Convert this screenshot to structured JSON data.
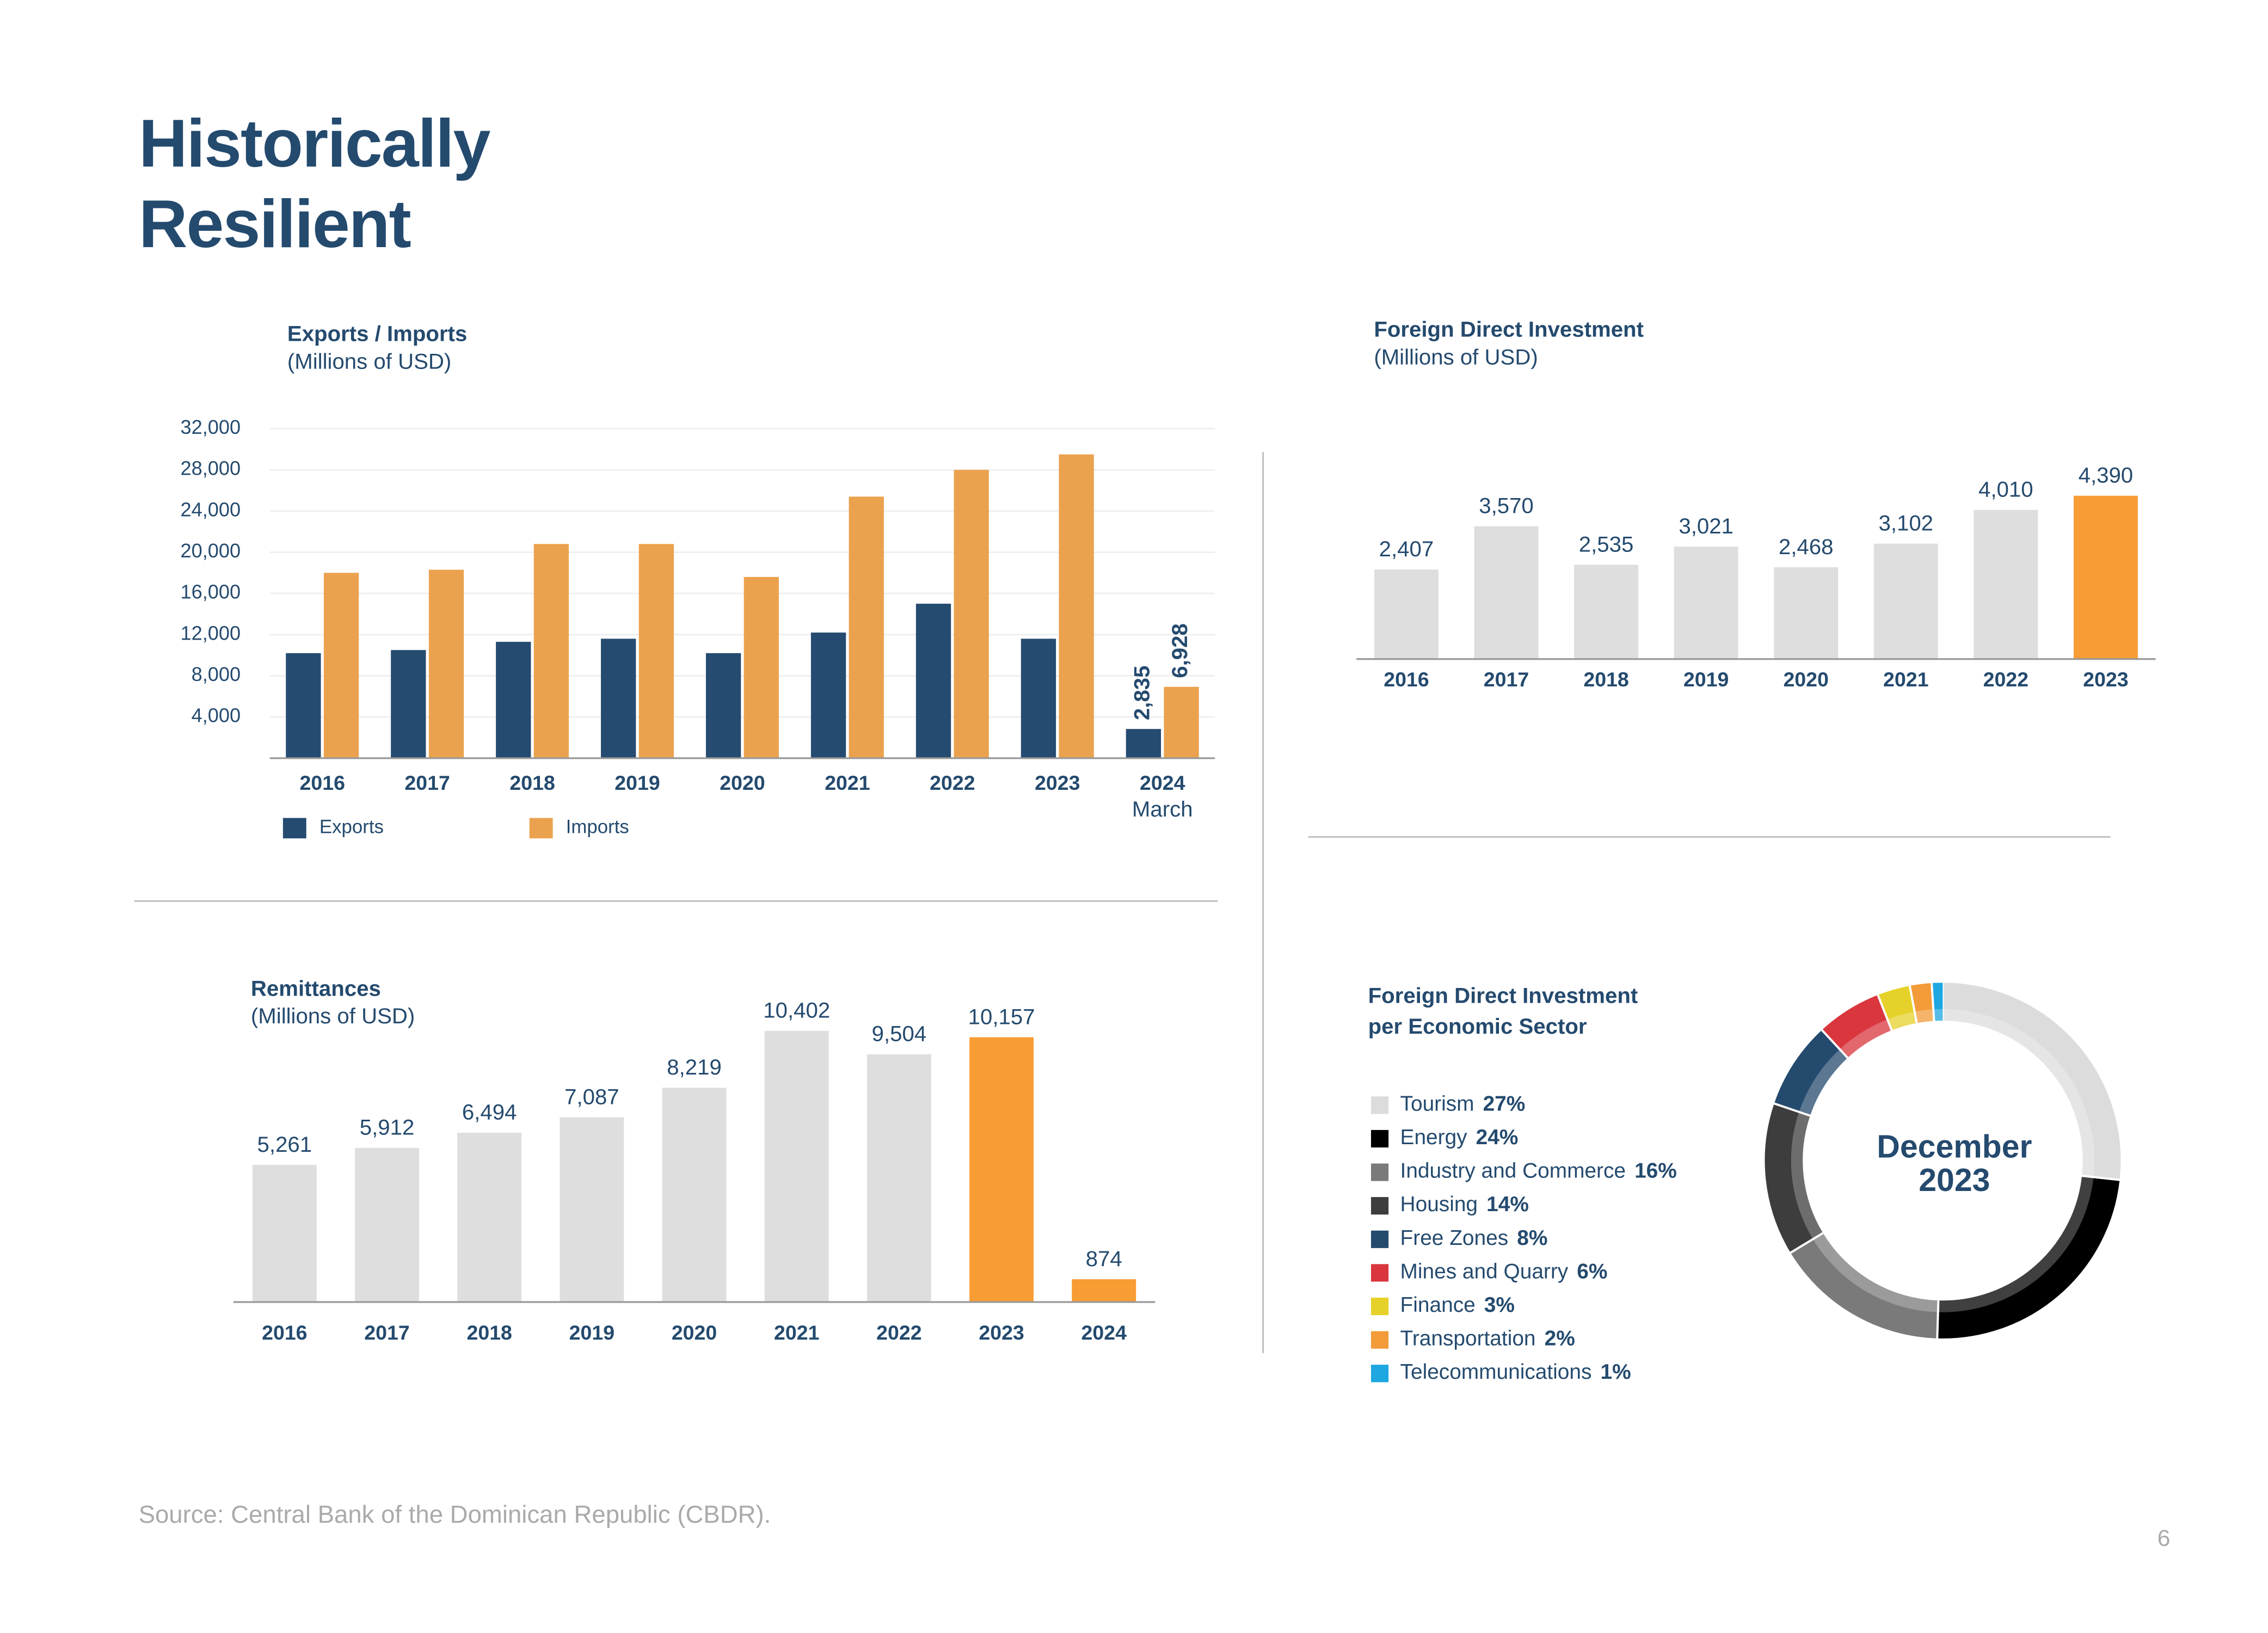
{
  "header": {
    "title": "Historically Resilient"
  },
  "chart_data": [
    {
      "type": "bar",
      "title": "Exports / Imports",
      "subtitle": "(Millions of USD)",
      "categories": [
        "2016",
        "2017",
        "2018",
        "2019",
        "2020",
        "2021",
        "2022",
        "2023",
        "2024"
      ],
      "annotations": [
        "March"
      ],
      "series": [
        {
          "name": "Exports",
          "color": "#264b70",
          "values": [
            10200,
            10500,
            11300,
            11600,
            10200,
            12200,
            15000,
            11600,
            2835
          ],
          "value_labels": [
            null,
            null,
            null,
            null,
            null,
            null,
            null,
            null,
            "2,835"
          ]
        },
        {
          "name": "Imports",
          "color": "#eba24e",
          "values": [
            18000,
            18300,
            20800,
            20800,
            17600,
            25400,
            28000,
            29500,
            6928
          ],
          "value_labels": [
            null,
            null,
            null,
            null,
            null,
            null,
            null,
            null,
            "6,928"
          ]
        }
      ],
      "ylim": [
        0,
        32000
      ],
      "yticks": [
        {
          "value": 4000,
          "label": "4,000"
        },
        {
          "value": 8000,
          "label": "8,000"
        },
        {
          "value": 12000,
          "label": "12,000"
        },
        {
          "value": 16000,
          "label": "16,000"
        },
        {
          "value": 20000,
          "label": "20,000"
        },
        {
          "value": 24000,
          "label": "24,000"
        },
        {
          "value": 28000,
          "label": "28,000"
        },
        {
          "value": 32000,
          "label": "32,000"
        }
      ],
      "grid": true,
      "legend": "bottom"
    },
    {
      "type": "bar",
      "title": "Foreign Direct Investment",
      "subtitle": "(Millions of USD)",
      "categories": [
        "2016",
        "2017",
        "2018",
        "2019",
        "2020",
        "2021",
        "2022",
        "2023"
      ],
      "values": [
        2407,
        3570,
        2535,
        3021,
        2468,
        3102,
        4010,
        4390
      ],
      "value_labels": [
        "2,407",
        "3,570",
        "2,535",
        "3,021",
        "2,468",
        "3,102",
        "4,010",
        "4,390"
      ],
      "colors": [
        "#dedede",
        "#dedede",
        "#dedede",
        "#dedede",
        "#dedede",
        "#dedede",
        "#dedede",
        "#f89c34"
      ]
    },
    {
      "type": "bar",
      "title": "Remittances",
      "subtitle": "(Millions of USD)",
      "categories": [
        "2016",
        "2017",
        "2018",
        "2019",
        "2020",
        "2021",
        "2022",
        "2023",
        "2024"
      ],
      "values": [
        5261,
        5912,
        6494,
        7087,
        8219,
        10402,
        9504,
        10157,
        874
      ],
      "value_labels": [
        "5,261",
        "5,912",
        "6,494",
        "7,087",
        "8,219",
        "10,402",
        "9,504",
        "10,157",
        "874"
      ],
      "colors": [
        "#dedede",
        "#dedede",
        "#dedede",
        "#dedede",
        "#dedede",
        "#dedede",
        "#dedede",
        "#f89c34",
        "#f89c34"
      ]
    },
    {
      "type": "donut",
      "title": [
        "Foreign Direct Investment",
        "per Economic Sector"
      ],
      "center_label": [
        "December",
        "2023"
      ],
      "categories": [
        "Tourism",
        "Energy",
        "Industry and Commerce",
        "Housing",
        "Free Zones",
        "Mines and Quarry",
        "Finance",
        "Transportation",
        "Telecommunications"
      ],
      "values": [
        27,
        24,
        16,
        14,
        8,
        6,
        3,
        2,
        1
      ],
      "value_labels": [
        "27%",
        "24%",
        "16%",
        "14%",
        "8%",
        "6%",
        "3%",
        "2%",
        "1%"
      ],
      "colors": [
        "#dcdcdc",
        "#000000",
        "#7a7a7a",
        "#3d3d3d",
        "#244a6e",
        "#d9363e",
        "#e6d12a",
        "#f29b38",
        "#1ea7e1"
      ]
    }
  ],
  "footer": {
    "source": "Source: Central Bank of the Dominican Republic (CBDR).",
    "page": "6"
  }
}
